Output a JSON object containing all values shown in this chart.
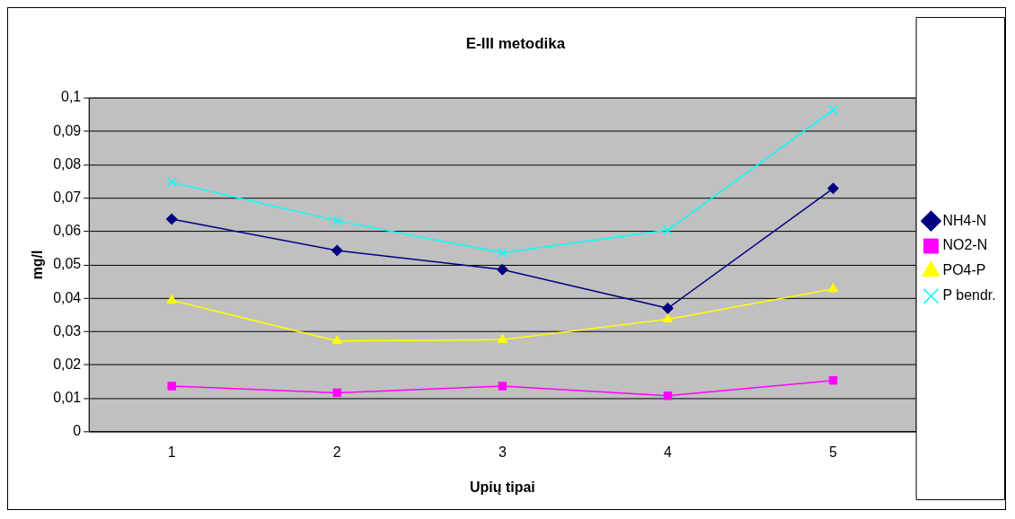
{
  "chart_data": {
    "type": "line",
    "title": "E-III metodika",
    "xlabel": "Upių tipai",
    "ylabel": "mg/l",
    "categories": [
      "1",
      "2",
      "3",
      "4",
      "5"
    ],
    "series": [
      {
        "name": "NH4-N",
        "color": "#000080",
        "marker": "diamond",
        "values": [
          0.0637,
          0.0543,
          0.0486,
          0.037,
          0.0729
        ]
      },
      {
        "name": "NO2-N",
        "color": "#ff00ff",
        "marker": "square",
        "values": [
          0.0137,
          0.0117,
          0.0137,
          0.0108,
          0.0154
        ]
      },
      {
        "name": "PO4-P",
        "color": "#ffff00",
        "marker": "triangle",
        "values": [
          0.0394,
          0.0272,
          0.0276,
          0.0337,
          0.0428
        ]
      },
      {
        "name": "P bendr.",
        "color": "#00ffff",
        "marker": "cross",
        "values": [
          0.0747,
          0.0632,
          0.0536,
          0.0604,
          0.0964
        ]
      }
    ],
    "ylim": [
      0,
      0.1
    ],
    "yticks": [
      {
        "value": 0,
        "label": "0"
      },
      {
        "value": 0.01,
        "label": "0,01"
      },
      {
        "value": 0.02,
        "label": "0,02"
      },
      {
        "value": 0.03,
        "label": "0,03"
      },
      {
        "value": 0.04,
        "label": "0,04"
      },
      {
        "value": 0.05,
        "label": "0,05"
      },
      {
        "value": 0.06,
        "label": "0,06"
      },
      {
        "value": 0.07,
        "label": "0,07"
      },
      {
        "value": 0.08,
        "label": "0,08"
      },
      {
        "value": 0.09,
        "label": "0,09"
      },
      {
        "value": 0.1,
        "label": "0,1"
      }
    ],
    "grid": "y",
    "legend": "right",
    "line_style": "solid"
  }
}
